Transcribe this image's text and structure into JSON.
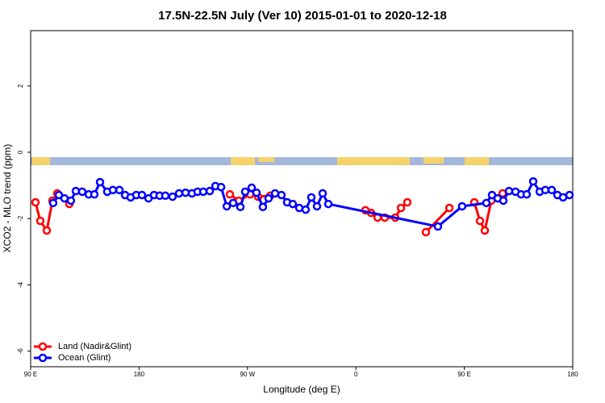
{
  "chart_data": {
    "type": "line",
    "title": "17.5N-22.5N July (Ver 10)   2015-01-01 to 2020-12-18",
    "x_label": "Longitude (deg E)",
    "y_label": "XCO2 - MLO trend (ppm)",
    "xlim": [
      90,
      540
    ],
    "xticks": [
      {
        "value": 90,
        "label": "90 E"
      },
      180,
      {
        "value": 270,
        "label": "90 W"
      },
      {
        "value": 360,
        "label": "0"
      },
      {
        "value": 450,
        "label": "90 E"
      },
      {
        "value": 540,
        "label": "180"
      }
    ],
    "ylim": [
      -6.47,
      3.67
    ],
    "yticks": [
      2,
      0,
      -2,
      -4,
      -6
    ],
    "grid": false,
    "legend": "bottomleft",
    "series": [
      {
        "name": "Land (Nadir&Glint)",
        "color": "#ff0000",
        "x": [
          94.0,
          98.0,
          103.4,
          108.1,
          112.1,
          122.1,
          203.2,
          255.4,
          262.8,
          272.2,
          278.8,
          288.9,
          347.2,
          367.9,
          372.6,
          378.0,
          384.0,
          392.7,
          397.4,
          402.7,
          412.8,
          418.1,
          437.6,
          454.3,
          458.3,
          463.0,
          467.0,
          472.4,
          481.8
        ],
        "values": [
          -1.51,
          -2.07,
          -2.36,
          -1.46,
          -1.24,
          -1.56,
          null,
          -1.27,
          -1.46,
          -1.27,
          -1.34,
          -1.31,
          null,
          -1.75,
          -1.83,
          -1.97,
          -1.97,
          -1.97,
          -1.68,
          -1.51,
          null,
          -2.41,
          -1.68,
          null,
          -1.51,
          -2.07,
          -2.36,
          -1.46,
          -1.24
        ]
      },
      {
        "name": "Ocean (Glint)",
        "color": "#0000ff",
        "x": [
          108.7,
          113.4,
          118.1,
          123.4,
          127.5,
          132.8,
          138.2,
          142.9,
          147.6,
          153.6,
          158.3,
          163.7,
          168.4,
          173.0,
          177.7,
          182.4,
          187.8,
          192.4,
          197.1,
          201.8,
          207.8,
          213.2,
          218.6,
          223.9,
          228.6,
          233.3,
          238.7,
          243.4,
          248.1,
          252.8,
          258.1,
          264.1,
          268.1,
          273.5,
          277.5,
          282.8,
          287.5,
          292.9,
          298.2,
          302.9,
          307.6,
          313.0,
          318.3,
          323.0,
          327.7,
          332.4,
          337.1,
          428.1,
          448.2,
          468.3,
          473.0,
          477.7,
          482.4,
          487.1,
          492.5,
          497.1,
          501.8,
          507.2,
          512.6,
          517.2,
          522.6,
          527.3,
          532.0,
          537.3
        ],
        "values": [
          -1.53,
          -1.29,
          -1.39,
          -1.46,
          -1.17,
          -1.19,
          -1.27,
          -1.27,
          -0.9,
          -1.19,
          -1.14,
          -1.14,
          -1.29,
          -1.36,
          -1.29,
          -1.29,
          -1.39,
          -1.29,
          -1.31,
          -1.31,
          -1.34,
          -1.24,
          -1.22,
          -1.24,
          -1.19,
          -1.19,
          -1.17,
          -1.02,
          -1.05,
          -1.63,
          -1.53,
          -1.65,
          -1.19,
          -1.07,
          -1.22,
          -1.65,
          -1.39,
          -1.24,
          -1.29,
          -1.51,
          -1.56,
          -1.68,
          -1.73,
          -1.36,
          -1.63,
          -1.24,
          -1.56,
          -2.24,
          -1.63,
          -1.53,
          -1.29,
          -1.39,
          -1.46,
          -1.17,
          -1.19,
          -1.27,
          -1.27,
          -0.88,
          -1.19,
          -1.14,
          -1.14,
          -1.29,
          -1.36,
          -1.29
        ]
      }
    ]
  }
}
